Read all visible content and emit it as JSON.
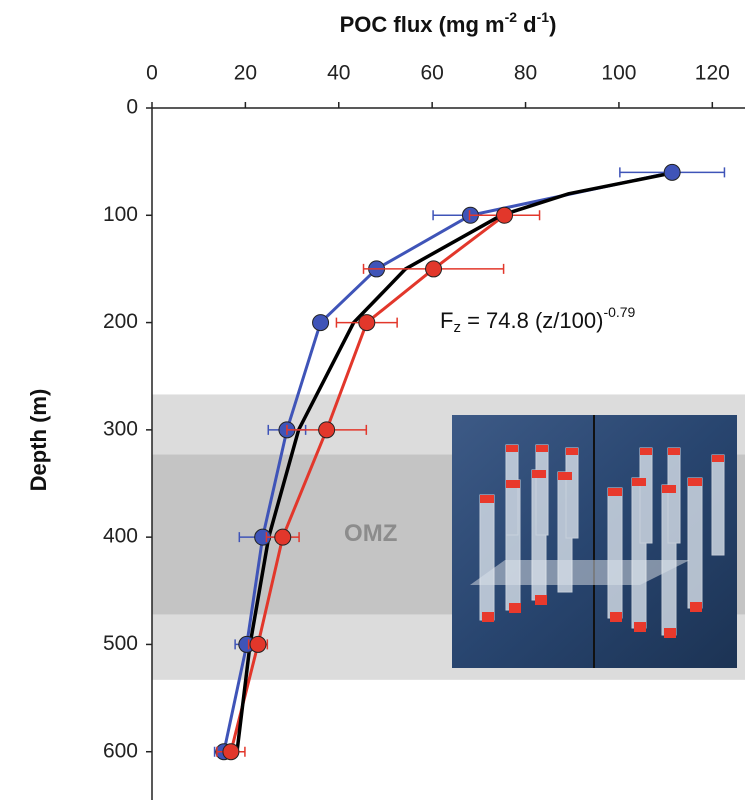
{
  "chart_data": {
    "type": "line",
    "x_title": {
      "main": "POC flux (mg m",
      "sup1": "-2",
      "mid": " d",
      "sup2": "-1",
      "end": ")"
    },
    "y_title": "Depth (m)",
    "xlim": [
      0,
      127
    ],
    "xticks": [
      0,
      20,
      40,
      60,
      80,
      100,
      120
    ],
    "ylim": [
      0,
      645
    ],
    "y_inverted": true,
    "yticks": [
      0,
      100,
      200,
      300,
      400,
      500,
      600
    ],
    "bands": [
      {
        "range": [
          267,
          533
        ],
        "color": "#dcdcdc"
      },
      {
        "range": [
          323,
          472
        ],
        "color": "#c4c4c4",
        "label": "OMZ"
      }
    ],
    "annotation": {
      "base": "F",
      "sub": "z",
      "main": " = 74.8 (z/100)",
      "sup": "-0.79"
    },
    "series": [
      {
        "color": "#3f54b8",
        "marker": true,
        "depths": [
          60,
          100,
          150,
          200,
          300,
          400,
          500,
          600
        ],
        "values": [
          111.4,
          68.2,
          48.1,
          36.1,
          28.9,
          23.7,
          20.3,
          15.4
        ],
        "errors": [
          11.2,
          8,
          1,
          1,
          4,
          5,
          2.5,
          2
        ]
      },
      {
        "color": "#e2372b",
        "marker": true,
        "depths": [
          60,
          100,
          150,
          200,
          300,
          400,
          500,
          600
        ],
        "values": [
          null,
          75.5,
          60.3,
          46,
          37.4,
          28,
          22.7,
          16.9
        ],
        "errors": [
          null,
          7.5,
          15,
          6.5,
          8.5,
          3.5,
          2,
          3
        ]
      },
      {
        "color": "#000000",
        "marker": false,
        "depths": [
          60,
          80,
          100,
          150,
          200,
          300,
          400,
          500,
          600
        ],
        "values": [
          112,
          89.2,
          74.8,
          54.3,
          43.2,
          31.4,
          25,
          21,
          18.2
        ]
      }
    ]
  }
}
